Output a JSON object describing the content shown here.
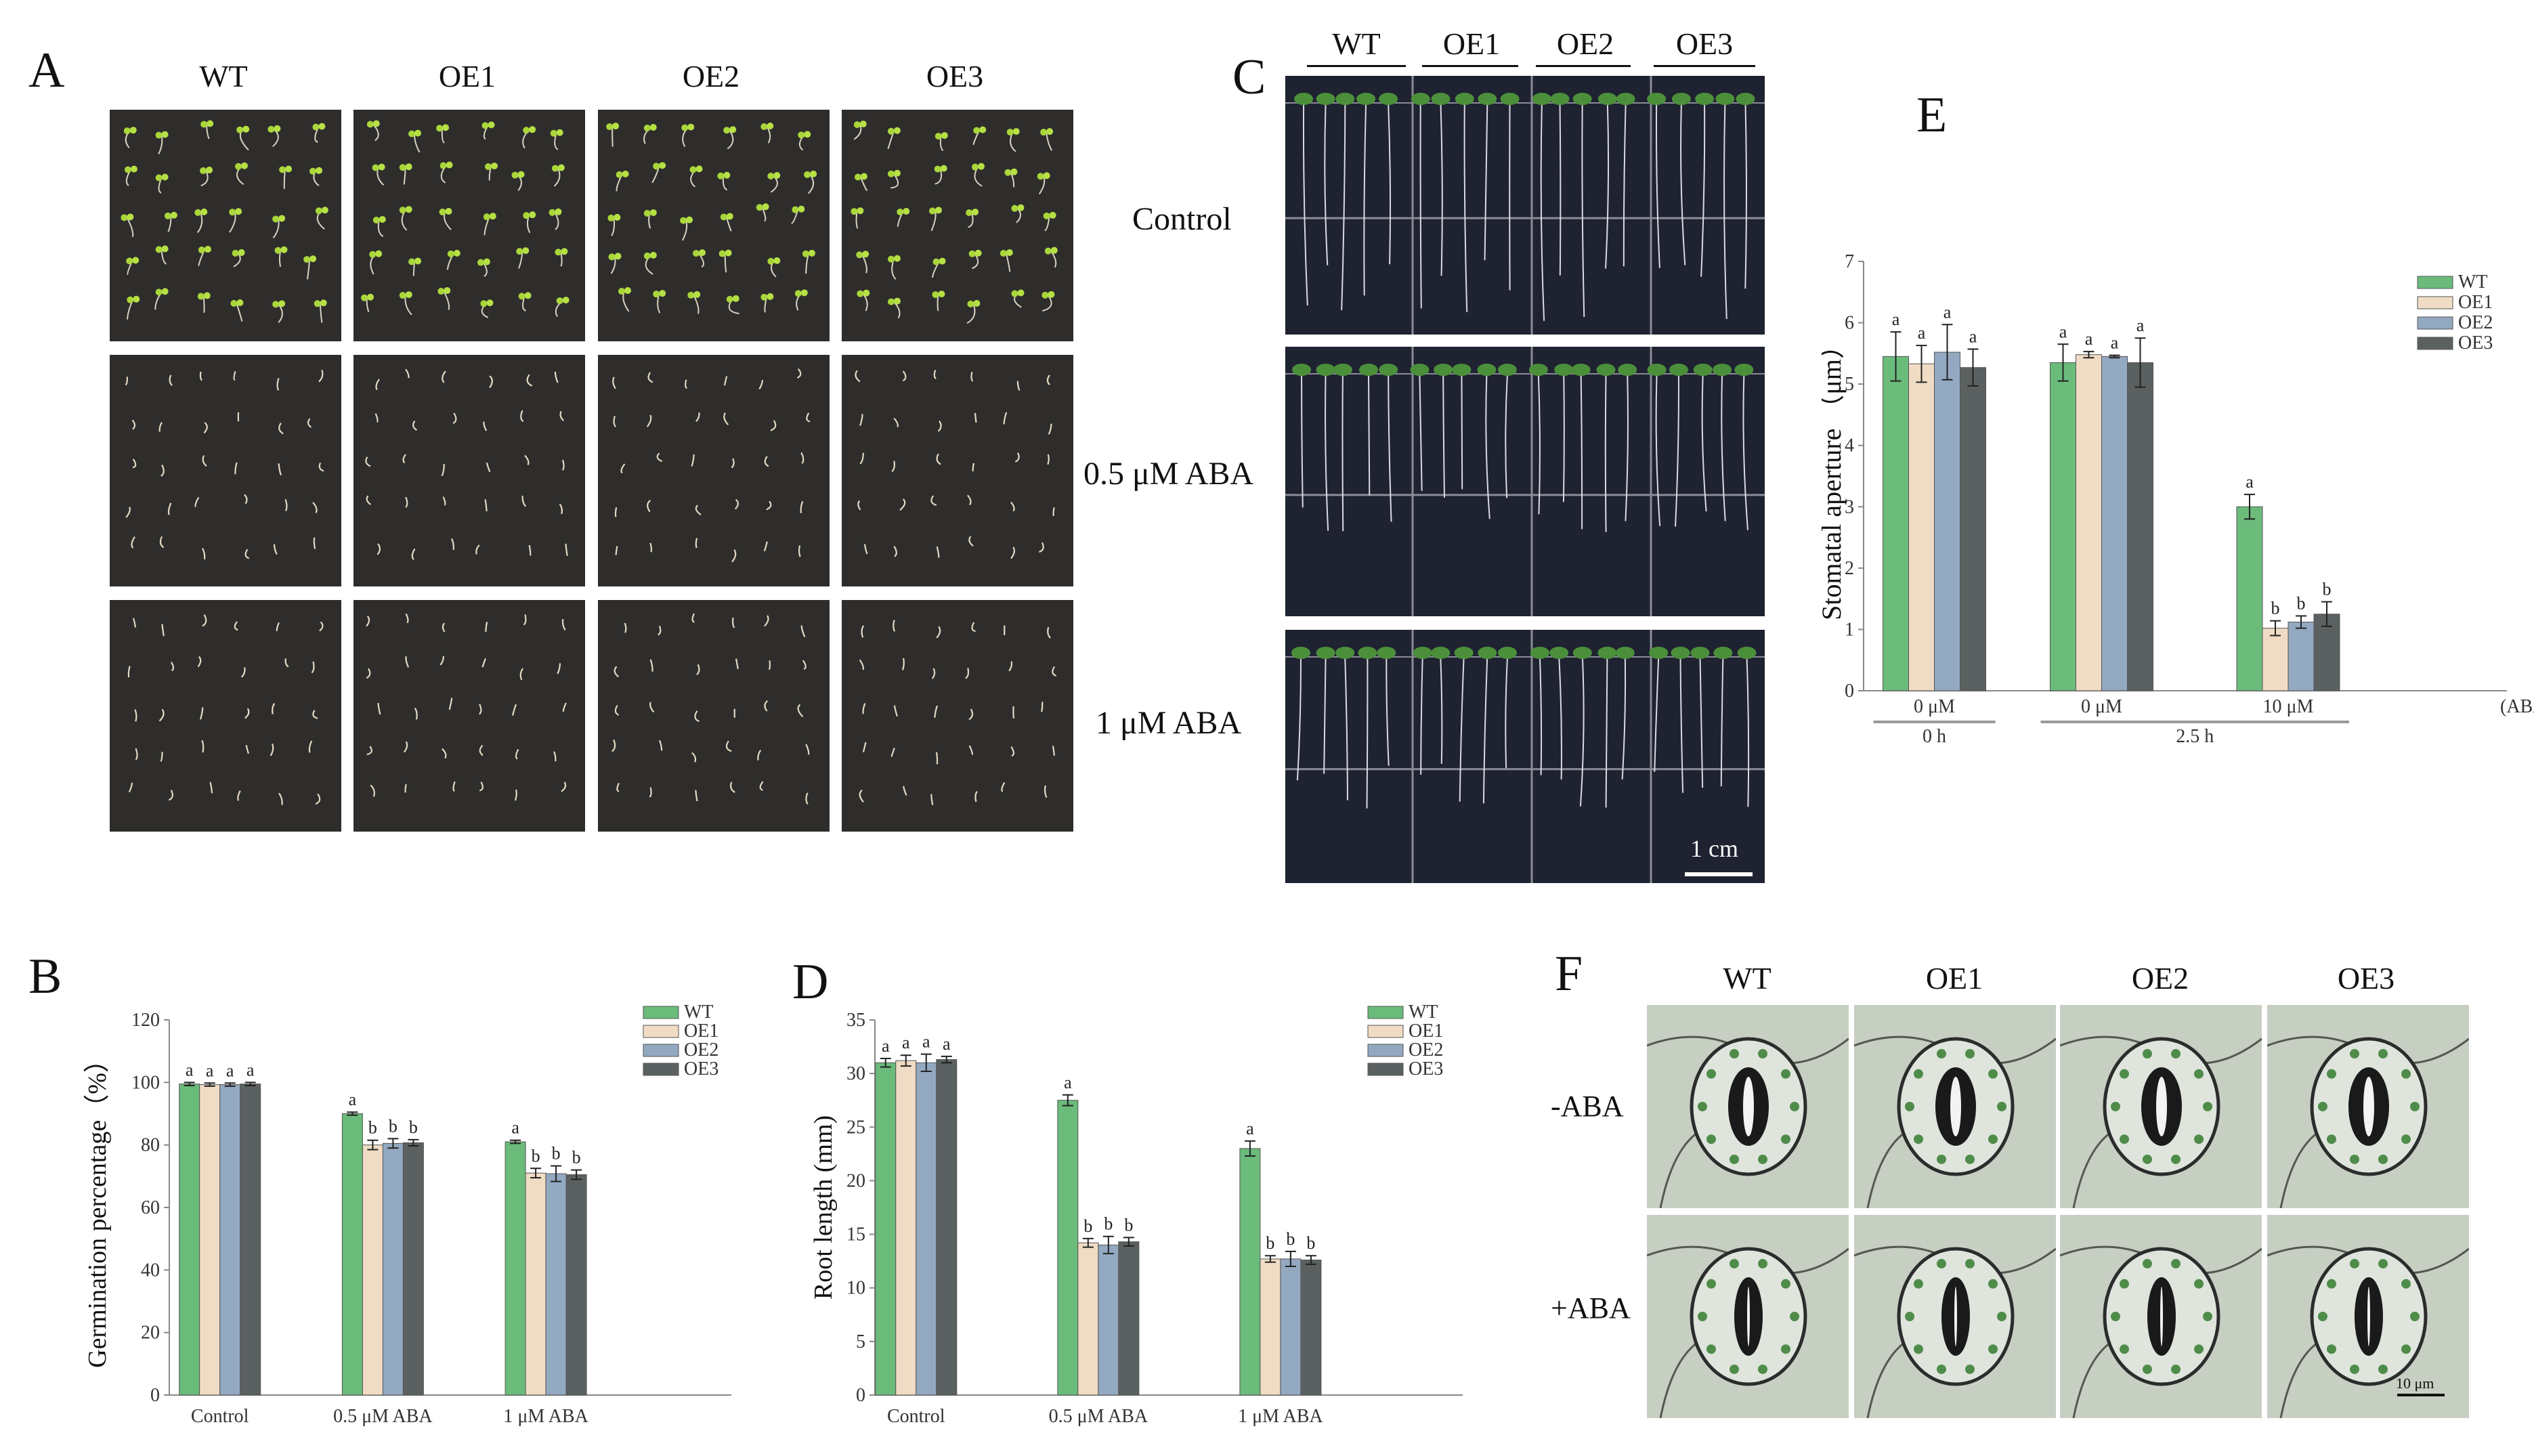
{
  "panels": {
    "A": "A",
    "B": "B",
    "C": "C",
    "D": "D",
    "E": "E",
    "F": "F"
  },
  "panel_a": {
    "columns": [
      "WT",
      "OE1",
      "OE2",
      "OE3"
    ],
    "rows": [
      "Control",
      "0.5 μM ABA",
      "1 μM ABA"
    ]
  },
  "panel_c": {
    "columns": [
      "WT",
      "OE1",
      "OE2",
      "OE3"
    ],
    "scale": "1 cm"
  },
  "panel_f": {
    "columns": [
      "WT",
      "OE1",
      "OE2",
      "OE3"
    ],
    "rows": [
      "-ABA",
      "+ABA"
    ],
    "scale": "10 μm"
  },
  "colors": {
    "WT": "#6bbb7b",
    "OE1": "#f0dcc4",
    "OE2": "#93a9c1",
    "OE3": "#5a6160"
  },
  "chart_data": [
    {
      "type": "bar",
      "panel": "B",
      "ylabel": "Germination percentage（%）",
      "xlabel": "",
      "ylim": [
        0,
        120
      ],
      "yticks": [
        0,
        20,
        40,
        60,
        80,
        100,
        120
      ],
      "categories": [
        "Control",
        "0.5 μM ABA",
        "1 μM ABA"
      ],
      "legend_position": "top-right",
      "series": [
        {
          "name": "WT",
          "values": [
            99.5,
            90,
            81
          ],
          "errors": [
            0.5,
            0.5,
            0.5
          ],
          "letters": [
            "a",
            "a",
            "a"
          ]
        },
        {
          "name": "OE1",
          "values": [
            99.3,
            80,
            71
          ],
          "errors": [
            0.5,
            1.5,
            1.5
          ],
          "letters": [
            "a",
            "b",
            "b"
          ]
        },
        {
          "name": "OE2",
          "values": [
            99.3,
            80.5,
            70.8
          ],
          "errors": [
            0.5,
            1.5,
            2.5
          ],
          "letters": [
            "a",
            "b",
            "b"
          ]
        },
        {
          "name": "OE3",
          "values": [
            99.5,
            80.7,
            70.5
          ],
          "errors": [
            0.5,
            1.0,
            1.5
          ],
          "letters": [
            "a",
            "b",
            "b"
          ]
        }
      ]
    },
    {
      "type": "bar",
      "panel": "D",
      "ylabel": "Root length (mm)",
      "xlabel": "",
      "ylim": [
        0,
        35
      ],
      "yticks": [
        0,
        5,
        10,
        15,
        20,
        25,
        30,
        35
      ],
      "categories": [
        "Control",
        "0.5 μM ABA",
        "1 μM ABA"
      ],
      "legend_position": "top-right",
      "series": [
        {
          "name": "WT",
          "values": [
            31,
            27.5,
            23
          ],
          "errors": [
            0.4,
            0.5,
            0.7
          ],
          "letters": [
            "a",
            "a",
            "a"
          ]
        },
        {
          "name": "OE1",
          "values": [
            31.2,
            14.2,
            12.7
          ],
          "errors": [
            0.5,
            0.4,
            0.3
          ],
          "letters": [
            "a",
            "b",
            "b"
          ]
        },
        {
          "name": "OE2",
          "values": [
            31,
            14,
            12.7
          ],
          "errors": [
            0.8,
            0.8,
            0.7
          ],
          "letters": [
            "a",
            "b",
            "b"
          ]
        },
        {
          "name": "OE3",
          "values": [
            31.3,
            14.3,
            12.6
          ],
          "errors": [
            0.3,
            0.4,
            0.4
          ],
          "letters": [
            "a",
            "b",
            "b"
          ]
        }
      ]
    },
    {
      "type": "bar",
      "panel": "E",
      "ylabel": "Stomatal aperture （μm）",
      "xlabel": "",
      "ylim": [
        0,
        7
      ],
      "yticks": [
        0,
        1,
        2,
        3,
        4,
        5,
        6,
        7
      ],
      "categories": [
        "0 μM",
        "0 μM",
        "10 μM"
      ],
      "axis_suffix": "(ABA)",
      "time_groups": [
        {
          "label": "0 h",
          "categories": [
            0
          ]
        },
        {
          "label": "2.5 h",
          "categories": [
            1,
            2
          ]
        }
      ],
      "legend_position": "top-right",
      "series": [
        {
          "name": "WT",
          "values": [
            5.45,
            5.35,
            3.0
          ],
          "errors": [
            0.4,
            0.3,
            0.2
          ],
          "letters": [
            "a",
            "a",
            "a"
          ]
        },
        {
          "name": "OE1",
          "values": [
            5.33,
            5.48,
            1.02
          ],
          "errors": [
            0.3,
            0.05,
            0.12
          ],
          "letters": [
            "a",
            "a",
            "b"
          ]
        },
        {
          "name": "OE2",
          "values": [
            5.52,
            5.45,
            1.12
          ],
          "errors": [
            0.45,
            0.02,
            0.1
          ],
          "letters": [
            "a",
            "a",
            "b"
          ]
        },
        {
          "name": "OE3",
          "values": [
            5.27,
            5.35,
            1.25
          ],
          "errors": [
            0.3,
            0.4,
            0.2
          ],
          "letters": [
            "a",
            "a",
            "b"
          ]
        }
      ]
    }
  ]
}
